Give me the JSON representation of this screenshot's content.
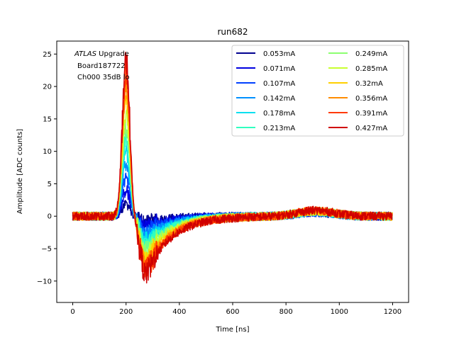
{
  "chart_data": {
    "type": "line",
    "title": "run682",
    "xlabel": "Time [ns]",
    "ylabel": "Amplitude [ADC counts]",
    "xlim": [
      -60,
      1260
    ],
    "ylim": [
      -13.3,
      27
    ],
    "xticks": [
      0,
      200,
      400,
      600,
      800,
      1000,
      1200
    ],
    "yticks": [
      -10,
      -5,
      0,
      5,
      10,
      15,
      20,
      25
    ],
    "xtick_labels": [
      "0",
      "200",
      "400",
      "600",
      "800",
      "1000",
      "1200"
    ],
    "ytick_labels": [
      "−10",
      "−5",
      "0",
      "5",
      "10",
      "15",
      "20",
      "25"
    ],
    "grid": false,
    "legend_placement": "top-right",
    "legend_columns": 2,
    "annotation": {
      "italic": "ATLAS",
      "line1_rest": " Upgrade",
      "line2": "Board187722",
      "line3": "Ch000 35dB lo"
    },
    "x_range": [
      0,
      1200
    ],
    "series": [
      {
        "name": "0.053mA",
        "color": "#00008f",
        "peak": 2.0,
        "trough": -0.8
      },
      {
        "name": "0.071mA",
        "color": "#0000e0",
        "peak": 4.0,
        "trough": -1.5
      },
      {
        "name": "0.107mA",
        "color": "#0040ff",
        "peak": 6.0,
        "trough": -2.3
      },
      {
        "name": "0.142mA",
        "color": "#0090ff",
        "peak": 8.0,
        "trough": -3.1
      },
      {
        "name": "0.178mA",
        "color": "#00e0f0",
        "peak": 10.0,
        "trough": -3.9
      },
      {
        "name": "0.213mA",
        "color": "#30ffc0",
        "peak": 12.0,
        "trough": -4.7
      },
      {
        "name": "0.249mA",
        "color": "#8cff70",
        "peak": 14.0,
        "trough": -5.4
      },
      {
        "name": "0.285mA",
        "color": "#c8ff30",
        "peak": 16.0,
        "trough": -6.2
      },
      {
        "name": "0.32mA",
        "color": "#ffd000",
        "peak": 18.0,
        "trough": -7.0
      },
      {
        "name": "0.356mA",
        "color": "#ff8c00",
        "peak": 20.0,
        "trough": -7.7
      },
      {
        "name": "0.391mA",
        "color": "#ff3a00",
        "peak": 22.0,
        "trough": -8.3
      },
      {
        "name": "0.427mA",
        "color": "#d00000",
        "peak": 24.0,
        "trough": -9.0
      }
    ]
  }
}
